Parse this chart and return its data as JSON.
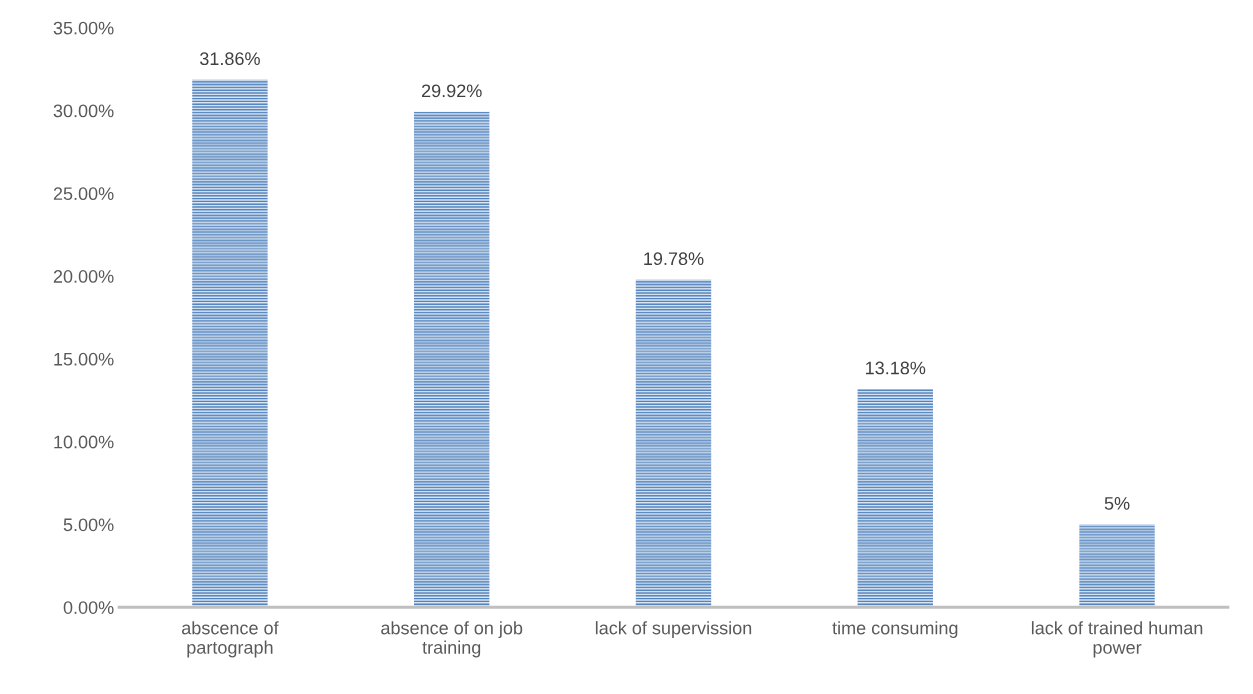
{
  "chart_data": {
    "type": "bar",
    "categories": [
      "abscence of\npartograph",
      "absence of on job\ntraining",
      "lack of supervission",
      "time consuming",
      "lack of trained human\npower"
    ],
    "values": [
      31.86,
      29.92,
      19.78,
      13.18,
      5
    ],
    "value_labels": [
      "31.86%",
      "29.92%",
      "19.78%",
      "13.18%",
      "5%"
    ],
    "color": "#4f81bd",
    "ylim": [
      0,
      35
    ],
    "yticks": [
      {
        "value": 0,
        "label": "0.00%"
      },
      {
        "value": 5,
        "label": "5.00%"
      },
      {
        "value": 10,
        "label": "10.00%"
      },
      {
        "value": 15,
        "label": "15.00%"
      },
      {
        "value": 20,
        "label": "20.00%"
      },
      {
        "value": 25,
        "label": "25.00%"
      },
      {
        "value": 30,
        "label": "30.00%"
      },
      {
        "value": 35,
        "label": "35.00%"
      }
    ],
    "grid": false,
    "legend": false
  }
}
